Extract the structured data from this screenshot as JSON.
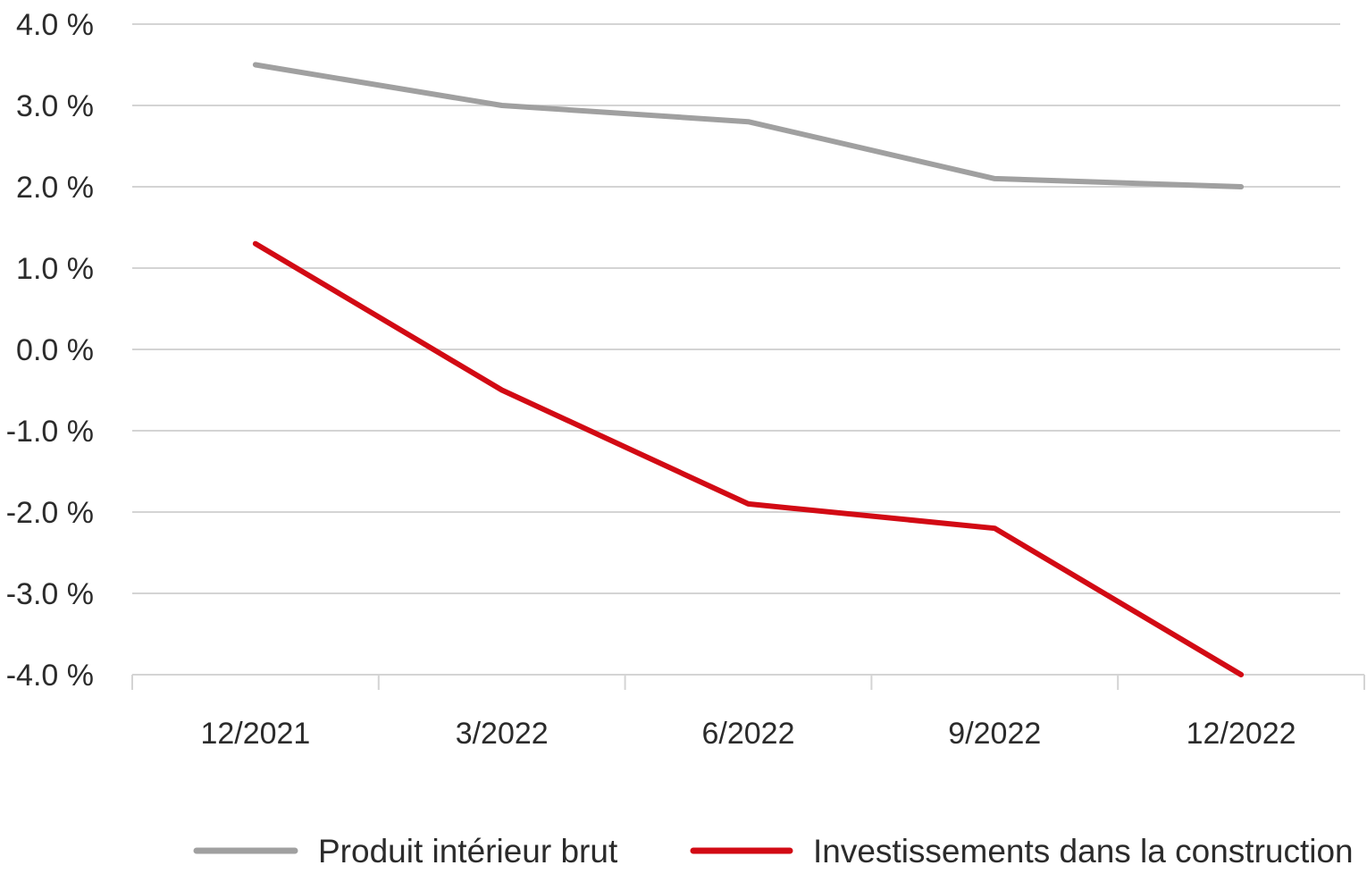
{
  "chart_data": {
    "type": "line",
    "title": "",
    "xlabel": "",
    "ylabel": "",
    "categories": [
      "12/2021",
      "3/2022",
      "6/2022",
      "9/2022",
      "12/2022"
    ],
    "ylim": [
      -4.0,
      4.0
    ],
    "y_ticks": [
      4.0,
      3.0,
      2.0,
      1.0,
      0.0,
      -1.0,
      -2.0,
      -3.0,
      -4.0
    ],
    "y_tick_labels": [
      "4.0 %",
      "3.0 %",
      "2.0 %",
      "1.0 %",
      "0.0 %",
      "-1.0 %",
      "-2.0 %",
      "-3.0 %",
      "-4.0 %"
    ],
    "grid": true,
    "legend_position": "bottom",
    "series": [
      {
        "name": "Produit intérieur brut",
        "color": "#a0a0a0",
        "values": [
          3.5,
          3.0,
          2.8,
          2.1,
          2.0
        ]
      },
      {
        "name": "Investissements dans la construction",
        "color": "#d20a14",
        "values": [
          1.3,
          -0.5,
          -1.9,
          -2.2,
          -4.0
        ]
      }
    ]
  }
}
